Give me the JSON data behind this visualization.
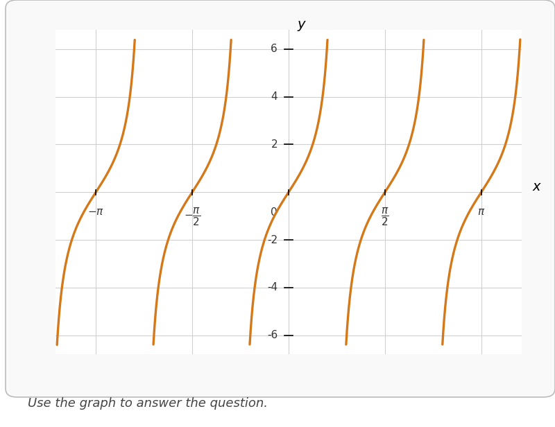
{
  "curve_color": "#D4791A",
  "background_color": "#ffffff",
  "grid_color": "#d0d0d0",
  "axis_color": "#000000",
  "text_color": "#333333",
  "xlim": [
    -3.8,
    3.8
  ],
  "ylim": [
    -6.8,
    6.8
  ],
  "yticks": [
    -6,
    -4,
    -2,
    2,
    4,
    6
  ],
  "xtick_positions": [
    -3.14159265,
    -1.5707963,
    0.0,
    1.5707963,
    3.14159265
  ],
  "caption": "Use the graph to answer the question.",
  "caption_fontsize": 13,
  "line_width": 2.4,
  "clip_y": 6.4,
  "arrow_mutation_scale": 13
}
